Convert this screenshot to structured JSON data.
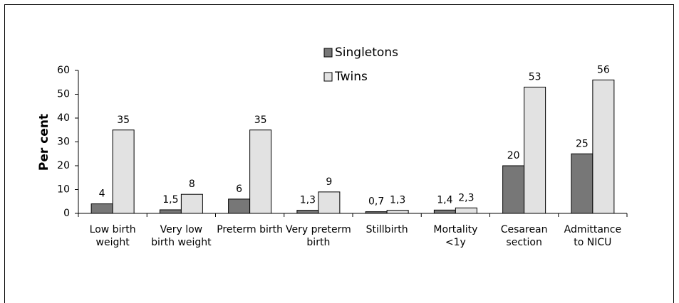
{
  "chart_data": {
    "type": "bar",
    "ylabel": "Per cent",
    "categories": [
      "Low birth weight",
      "Very low birth weight",
      "Preterm birth",
      "Very preterm birth",
      "Stillbirth",
      "Mortality <1y",
      "Cesarean section",
      "Admittance to NICU"
    ],
    "series": [
      {
        "name": "Singletons",
        "color": "#777777",
        "values": [
          4,
          1.5,
          6,
          1.3,
          0.7,
          1.4,
          20,
          25
        ],
        "value_labels": [
          "4",
          "1,5",
          "6",
          "1,3",
          "0,7",
          "1,4",
          "20",
          "25"
        ]
      },
      {
        "name": "Twins",
        "color": "#e2e2e2",
        "values": [
          35,
          8,
          35,
          9,
          1.3,
          2.3,
          53,
          56
        ],
        "value_labels": [
          "35",
          "8",
          "35",
          "9",
          "1,3",
          "2,3",
          "53",
          "56"
        ]
      }
    ],
    "ylim": [
      0,
      60
    ],
    "yticks": [
      0,
      10,
      20,
      30,
      40,
      50,
      60
    ],
    "grid": false
  }
}
